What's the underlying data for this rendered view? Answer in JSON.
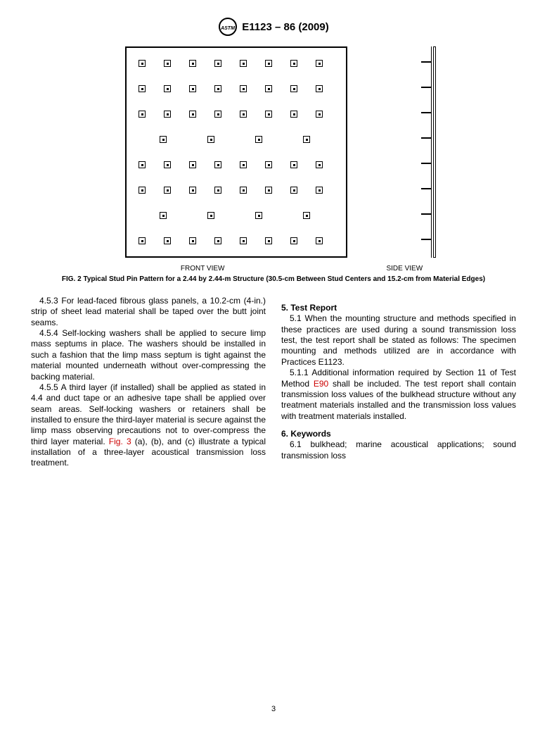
{
  "header": {
    "designation": "E1123 – 86 (2009)"
  },
  "figure": {
    "front_label": "FRONT VIEW",
    "side_label": "SIDE VIEW",
    "caption": "FIG. 2  Typical Stud Pin Pattern for a 2.44 by 2.44-m Structure (30.5-cm Between Stud Centers and 15.2-cm from Material Edges)",
    "rows8_y": [
      22,
      58,
      94,
      166,
      202,
      274
    ],
    "rows8_x": [
      22,
      58,
      94,
      130,
      166,
      202,
      238,
      274
    ],
    "rows4_y": [
      130,
      238
    ],
    "rows4_x": [
      52,
      120,
      188,
      256
    ],
    "side_tick_y": [
      22,
      58,
      94,
      130,
      166,
      202,
      238,
      274
    ]
  },
  "left_col": {
    "p1_label": "4.5.3",
    "p1": "For lead-faced fibrous glass panels, a 10.2-cm (4-in.) strip of sheet lead material shall be taped over the butt joint seams.",
    "p2_label": "4.5.4",
    "p2": "Self-locking washers shall be applied to secure limp mass septums in place. The washers should be installed in such a fashion that the limp mass septum is tight against the material mounted underneath without over-compressing the backing material.",
    "p3_label": "4.5.5",
    "p3a": "A third layer (if installed) shall be applied as stated in 4.4 and duct tape or an adhesive tape shall be applied over seam areas. Self-locking washers or retainers shall be installed to ensure the third-layer material is secure against the limp mass observing precautions not to over-compress the third layer material. ",
    "p3_link": "Fig. 3",
    "p3b": " (a), (b), and (c) illustrate a typical installation of a three-layer acoustical transmission loss treatment."
  },
  "right_col": {
    "s5_title": "5.  Test Report",
    "p51_label": "5.1",
    "p51": "When the mounting structure and methods specified in these practices are used during a sound transmission loss test, the test report shall be stated as follows: The specimen mounting and methods utilized are in accordance with Practices E1123.",
    "p511_label": "5.1.1",
    "p511a": "Additional information required by Section 11 of Test Method ",
    "p511_link": "E90",
    "p511b": " shall be included. The test report shall contain transmission loss values of the bulkhead structure without any treatment materials installed and the transmission loss values with treatment materials installed.",
    "s6_title": "6.  Keywords",
    "p61_label": "6.1",
    "p61": "bulkhead; marine acoustical applications; sound transmission loss"
  },
  "page_number": "3"
}
